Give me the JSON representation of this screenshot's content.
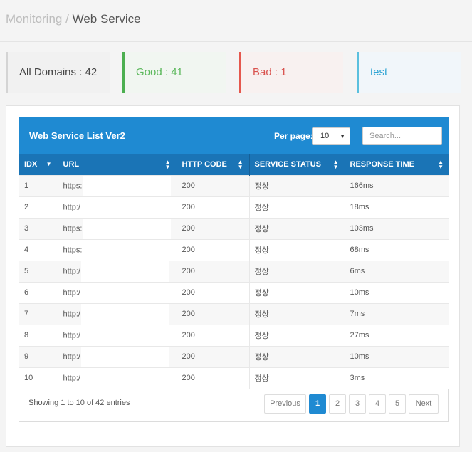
{
  "breadcrumb": {
    "parent": "Monitoring",
    "separator": "/",
    "current": "Web Service"
  },
  "summary": {
    "all": "All Domains : 42",
    "good": "Good : 41",
    "bad": "Bad : 1",
    "test": "test"
  },
  "table": {
    "title": "Web Service List Ver2",
    "per_page_label": "Per page:",
    "per_page_value": "10",
    "search_placeholder": "Search...",
    "columns": [
      "IDX",
      "URL",
      "HTTP CODE",
      "SERVICE STATUS",
      "RESPONSE TIME"
    ],
    "rows": [
      {
        "idx": "1",
        "url": "https:",
        "code": "200",
        "status": "정상",
        "time": "166ms"
      },
      {
        "idx": "2",
        "url": "http:/",
        "code": "200",
        "status": "정상",
        "time": "18ms"
      },
      {
        "idx": "3",
        "url": "https:",
        "code": "200",
        "status": "정상",
        "time": "103ms"
      },
      {
        "idx": "4",
        "url": "https:",
        "code": "200",
        "status": "정상",
        "time": "68ms"
      },
      {
        "idx": "5",
        "url": "http:/",
        "code": "200",
        "status": "정상",
        "time": "6ms"
      },
      {
        "idx": "6",
        "url": "http:/",
        "code": "200",
        "status": "정상",
        "time": "10ms"
      },
      {
        "idx": "7",
        "url": "http:/",
        "code": "200",
        "status": "정상",
        "time": "7ms"
      },
      {
        "idx": "8",
        "url": "http:/",
        "code": "200",
        "status": "정상",
        "time": "27ms"
      },
      {
        "idx": "9",
        "url": "http:/",
        "code": "200",
        "status": "정상",
        "time": "10ms"
      },
      {
        "idx": "10",
        "url": "http:/",
        "code": "200",
        "status": "정상",
        "time": "3ms"
      }
    ],
    "info": "Showing 1 to 10 of 42 entries",
    "pagination": {
      "previous": "Previous",
      "pages": [
        "1",
        "2",
        "3",
        "4",
        "5"
      ],
      "next": "Next",
      "active": "1"
    }
  }
}
